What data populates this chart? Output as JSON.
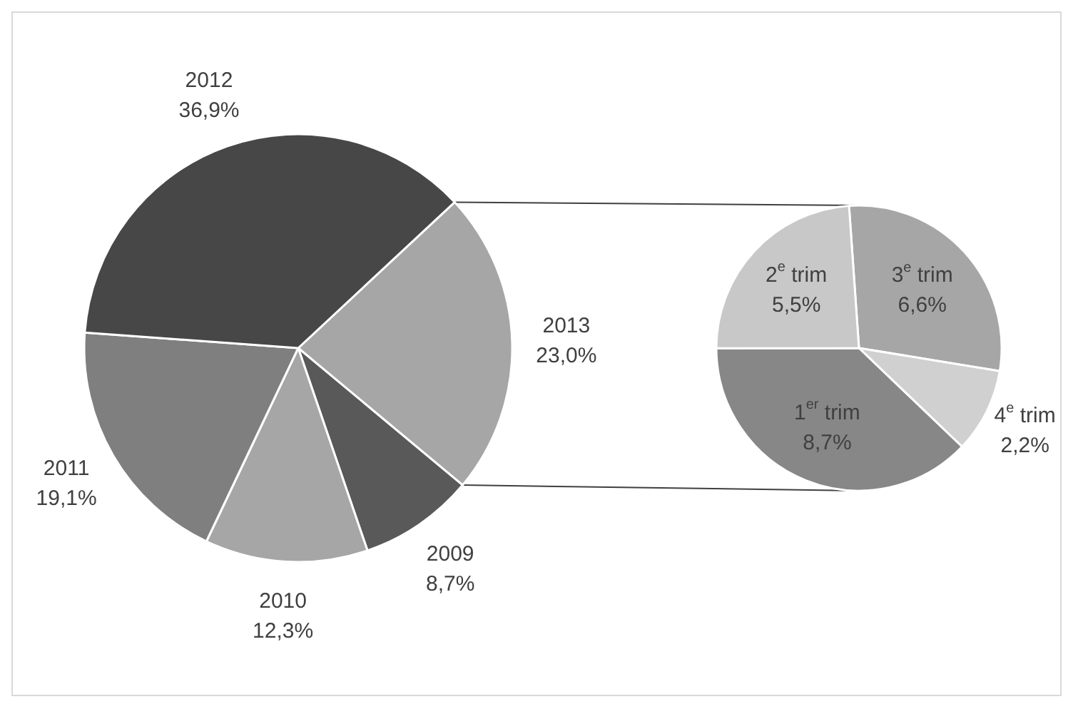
{
  "chart_data": [
    {
      "type": "pie",
      "categories": [
        "2013",
        "2009",
        "2010",
        "2011",
        "2012"
      ],
      "values": [
        23.0,
        8.7,
        12.3,
        19.1,
        36.9
      ],
      "colors": [
        "#a6a6a6",
        "#595959",
        "#a6a6a6",
        "#7f7f7f",
        "#474747"
      ],
      "value_labels": [
        "23,0%",
        "8,7%",
        "12,3%",
        "19,1%",
        "36,9%"
      ]
    },
    {
      "type": "pie",
      "categories": [
        "3$^{e}$ trim",
        "4$^{e}$ trim",
        "1$^{er}$ trim",
        "2$^{e}$ trim"
      ],
      "values": [
        6.6,
        2.2,
        8.7,
        5.5
      ],
      "colors": [
        "#a6a6a6",
        "#d0d0d0",
        "#878787",
        "#c8c8c8"
      ],
      "value_labels": [
        "6,6%",
        "2,2%",
        "8,7%",
        "5,5%"
      ]
    }
  ]
}
